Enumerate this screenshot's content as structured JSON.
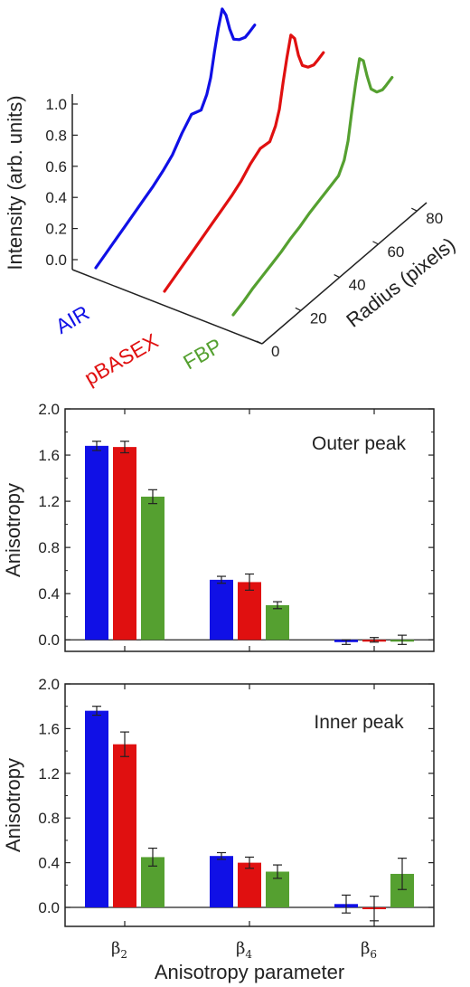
{
  "colors": {
    "AIR": "#1010e6",
    "pBASEX": "#e01010",
    "FBP": "#55a030"
  },
  "chart_data": [
    {
      "type": "line",
      "ylabel": "Intensity (arb. units)",
      "depth_label": "Radius (pixels)",
      "y_ticks": [
        "0.0",
        "0.2",
        "0.4",
        "0.6",
        "0.8",
        "1.0"
      ],
      "r_ticks": [
        "0",
        "20",
        "40",
        "60",
        "80"
      ],
      "ylim": [
        0,
        1.0
      ],
      "rlim": [
        0,
        85
      ],
      "series": [
        {
          "name": "AIR",
          "color_key": "AIR",
          "r": [
            0,
            5,
            10,
            15,
            20,
            25,
            30,
            35,
            40,
            45,
            50,
            55,
            58,
            60,
            62,
            64,
            66,
            68,
            70,
            72,
            75,
            78,
            80,
            83
          ],
          "y": [
            0.0,
            0.04,
            0.08,
            0.12,
            0.16,
            0.2,
            0.24,
            0.29,
            0.35,
            0.45,
            0.53,
            0.5,
            0.58,
            0.68,
            0.85,
            1.0,
            1.12,
            1.05,
            0.92,
            0.82,
            0.78,
            0.76,
            0.77,
            0.79
          ]
        },
        {
          "name": "pBASEX",
          "color_key": "pBASEX",
          "r": [
            0,
            5,
            10,
            15,
            20,
            25,
            30,
            35,
            40,
            45,
            50,
            55,
            58,
            60,
            62,
            64,
            66,
            68,
            70,
            72,
            75,
            78,
            80,
            83
          ],
          "y": [
            0.0,
            0.04,
            0.08,
            0.12,
            0.16,
            0.2,
            0.24,
            0.28,
            0.33,
            0.4,
            0.45,
            0.44,
            0.52,
            0.62,
            0.8,
            0.96,
            1.1,
            1.05,
            0.9,
            0.8,
            0.75,
            0.73,
            0.74,
            0.76
          ]
        },
        {
          "name": "FBP",
          "color_key": "FBP",
          "r": [
            0,
            5,
            10,
            15,
            20,
            25,
            30,
            35,
            40,
            45,
            50,
            55,
            58,
            60,
            62,
            64,
            66,
            68,
            70,
            72,
            75,
            78,
            80,
            83
          ],
          "y": [
            0.0,
            0.03,
            0.07,
            0.1,
            0.13,
            0.16,
            0.2,
            0.23,
            0.27,
            0.3,
            0.33,
            0.36,
            0.44,
            0.56,
            0.76,
            0.94,
            1.1,
            1.06,
            0.92,
            0.8,
            0.74,
            0.72,
            0.73,
            0.75
          ]
        }
      ]
    },
    {
      "type": "bar",
      "annotation": "Outer peak",
      "ylabel": "Anisotropy",
      "ylim": [
        -0.1,
        2.0
      ],
      "y_ticks": [
        "0.0",
        "0.4",
        "0.8",
        "1.2",
        "1.6",
        "2.0"
      ],
      "categories": [
        "β2",
        "β4",
        "β6"
      ],
      "series": [
        {
          "name": "AIR",
          "color_key": "AIR",
          "values": [
            1.68,
            0.52,
            -0.02
          ],
          "errors": [
            0.04,
            0.03,
            0.02
          ]
        },
        {
          "name": "pBASEX",
          "color_key": "pBASEX",
          "values": [
            1.67,
            0.5,
            0.0
          ],
          "errors": [
            0.05,
            0.07,
            0.02
          ]
        },
        {
          "name": "FBP",
          "color_key": "FBP",
          "values": [
            1.24,
            0.3,
            0.0
          ],
          "errors": [
            0.06,
            0.03,
            0.04
          ]
        }
      ]
    },
    {
      "type": "bar",
      "annotation": "Inner peak",
      "ylabel": "Anisotropy",
      "xlabel": "Anisotropy parameter",
      "ylim": [
        -0.17,
        2.0
      ],
      "y_ticks": [
        "0.0",
        "0.4",
        "0.8",
        "1.2",
        "1.6",
        "2.0"
      ],
      "categories": [
        "β2",
        "β4",
        "β6"
      ],
      "series": [
        {
          "name": "AIR",
          "color_key": "AIR",
          "values": [
            1.76,
            0.46,
            0.03
          ],
          "errors": [
            0.04,
            0.03,
            0.08
          ]
        },
        {
          "name": "pBASEX",
          "color_key": "pBASEX",
          "values": [
            1.46,
            0.4,
            -0.01
          ],
          "errors": [
            0.11,
            0.05,
            0.11
          ]
        },
        {
          "name": "FBP",
          "color_key": "FBP",
          "values": [
            0.45,
            0.32,
            0.3
          ],
          "errors": [
            0.08,
            0.06,
            0.14
          ]
        }
      ]
    }
  ]
}
